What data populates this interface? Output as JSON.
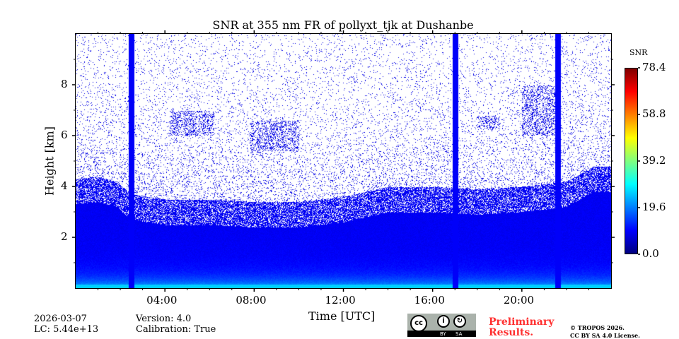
{
  "chart_data": {
    "type": "heatmap",
    "title": "SNR at 355 nm FR of pollyxt_tjk at Dushanbe",
    "xlabel": "Time [UTC]",
    "ylabel": "Height [km]",
    "xlim_hours": [
      0,
      24
    ],
    "ylim_km": [
      0,
      10
    ],
    "x_ticks": [
      {
        "value": 4,
        "label": "04:00"
      },
      {
        "value": 8,
        "label": "08:00"
      },
      {
        "value": 12,
        "label": "12:00"
      },
      {
        "value": 16,
        "label": "16:00"
      },
      {
        "value": 20,
        "label": "20:00"
      }
    ],
    "y_ticks": [
      {
        "value": 2,
        "label": "2"
      },
      {
        "value": 4,
        "label": "4"
      },
      {
        "value": 6,
        "label": "6"
      },
      {
        "value": 8,
        "label": "8"
      }
    ],
    "colorbar": {
      "label": "SNR",
      "range": [
        0,
        78.4
      ],
      "ticks": [
        "0.0",
        "19.6",
        "39.2",
        "58.8",
        "78.4"
      ],
      "colormap": "jet"
    },
    "data_gaps_hours": [
      2.5,
      17.0,
      21.6
    ],
    "signal_top_km": {
      "x": [
        0,
        1,
        1.8,
        2.5,
        4,
        6,
        8,
        10,
        12,
        14,
        16,
        18,
        20,
        22,
        23.2,
        24
      ],
      "y": [
        3.9,
        4.0,
        3.8,
        3.3,
        3.1,
        3.1,
        3.0,
        3.0,
        3.2,
        3.6,
        3.6,
        3.5,
        3.6,
        3.8,
        4.4,
        4.4
      ]
    },
    "elevated_layers": [
      {
        "t": [
          4.2,
          6.2
        ],
        "h": [
          6.0,
          7.0
        ]
      },
      {
        "t": [
          7.8,
          10.0
        ],
        "h": [
          5.4,
          6.6
        ]
      },
      {
        "t": [
          18.0,
          19.0
        ],
        "h": [
          6.3,
          6.8
        ]
      },
      {
        "t": [
          20.0,
          21.5
        ],
        "h": [
          6.0,
          8.0
        ]
      }
    ]
  },
  "footer": {
    "date": "2026-03-07",
    "lc": "LC: 5.44e+13",
    "version": "Version: 4.0",
    "calibration": "Calibration: True",
    "preliminary": [
      "Preliminary",
      "Results."
    ],
    "license": [
      "© TROPOS 2026.",
      "CC BY SA 4.0 License."
    ],
    "cc_badge": [
      "cc",
      "BY",
      "SA"
    ]
  }
}
